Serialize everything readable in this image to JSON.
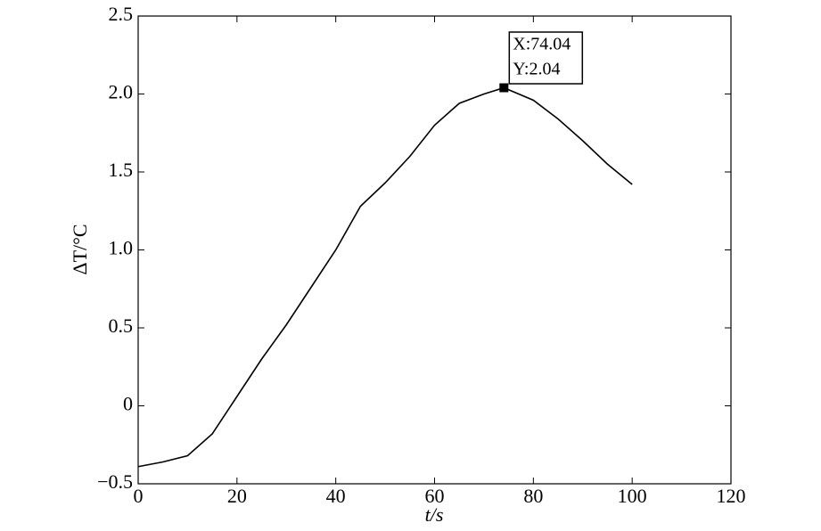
{
  "chart_data": {
    "type": "line",
    "xlabel": "t/s",
    "ylabel": "ΔT/°C",
    "x": [
      0,
      5,
      10,
      15,
      20,
      25,
      30,
      35,
      40,
      45,
      50,
      55,
      60,
      65,
      70,
      74.04,
      80,
      85,
      90,
      95,
      100
    ],
    "series": [
      {
        "name": "ΔT",
        "color": "#000000",
        "values": [
          -0.39,
          -0.36,
          -0.32,
          -0.18,
          0.06,
          0.3,
          0.52,
          0.76,
          1.0,
          1.28,
          1.43,
          1.6,
          1.8,
          1.94,
          2.0,
          2.04,
          1.96,
          1.84,
          1.7,
          1.55,
          1.42
        ]
      }
    ],
    "xlim": [
      0,
      120
    ],
    "xticks": [
      0,
      20,
      40,
      60,
      80,
      100,
      120
    ],
    "ylim": [
      -0.5,
      2.5
    ],
    "yticks": [
      {
        "value": -0.5,
        "label": "−0.5"
      },
      0,
      0.5,
      {
        "value": 1.0,
        "label": "1.0"
      },
      {
        "value": 1.5,
        "label": "1.5"
      },
      {
        "value": 2.0,
        "label": "2.0"
      },
      2.5
    ],
    "grid": false,
    "annotation": {
      "x": 74.04,
      "y": 2.04,
      "lines": [
        "X:74.04",
        "Y:2.04"
      ]
    }
  }
}
